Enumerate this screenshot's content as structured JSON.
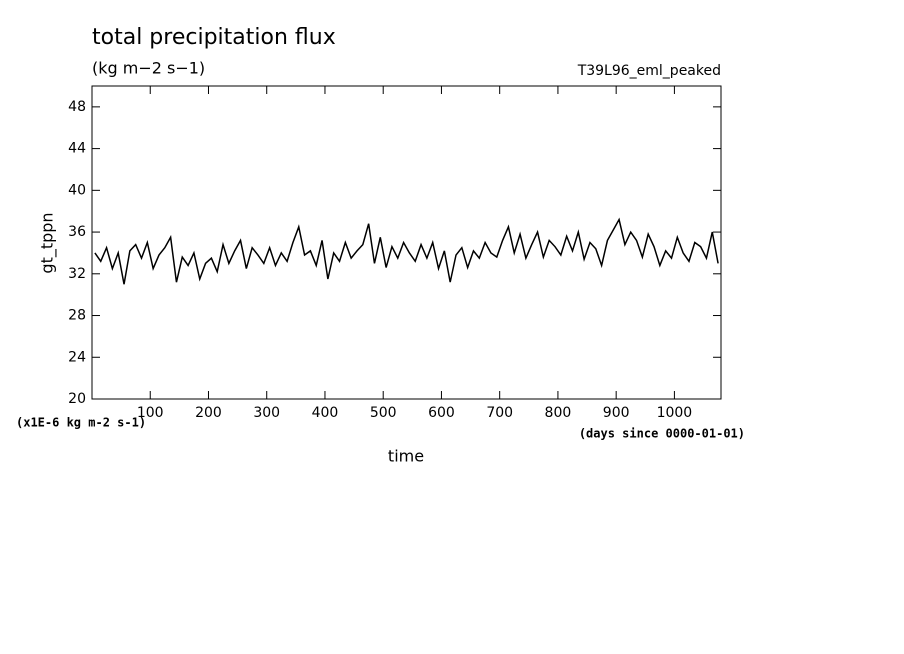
{
  "chart_data": {
    "type": "line",
    "title": "total precipitation flux",
    "subtitle": "(kg m−2 s−1)",
    "annotation": "T39L96_eml_peaked",
    "y_label": "gt_tppn",
    "x_label": "time",
    "y_unit_note": "(x1E-6 kg m-2 s-1)",
    "x_unit_note": "(days since 0000-01-01)",
    "x": [
      5,
      15,
      25,
      35,
      45,
      55,
      65,
      75,
      85,
      95,
      105,
      115,
      125,
      135,
      145,
      155,
      165,
      175,
      185,
      195,
      205,
      215,
      225,
      235,
      245,
      255,
      265,
      275,
      285,
      295,
      305,
      315,
      325,
      335,
      345,
      355,
      365,
      375,
      385,
      395,
      405,
      415,
      425,
      435,
      445,
      455,
      465,
      475,
      485,
      495,
      505,
      515,
      525,
      535,
      545,
      555,
      565,
      575,
      585,
      595,
      605,
      615,
      625,
      635,
      645,
      655,
      665,
      675,
      685,
      695,
      705,
      715,
      725,
      735,
      745,
      755,
      765,
      775,
      785,
      795,
      805,
      815,
      825,
      835,
      845,
      855,
      865,
      875,
      885,
      895,
      905,
      915,
      925,
      935,
      945,
      955,
      965,
      975,
      985,
      995,
      1005,
      1015,
      1025,
      1035,
      1045,
      1055,
      1065,
      1075
    ],
    "series": [
      {
        "name": "gt_tppn",
        "color": "#000000",
        "values": [
          34,
          33.2,
          34.5,
          32.5,
          34,
          31,
          34.2,
          34.8,
          33.5,
          35,
          32.5,
          33.8,
          34.5,
          35.5,
          31.2,
          33.6,
          32.8,
          34,
          31.5,
          33,
          33.5,
          32.2,
          34.8,
          33,
          34.2,
          35.2,
          32.5,
          34.5,
          33.8,
          33,
          34.5,
          32.8,
          34,
          33.2,
          35,
          36.5,
          33.8,
          34.2,
          32.8,
          35.2,
          31.5,
          34,
          33.2,
          35,
          33.5,
          34.2,
          34.8,
          36.8,
          33,
          35.5,
          32.6,
          34.6,
          33.5,
          35,
          34,
          33.2,
          34.8,
          33.5,
          35,
          32.5,
          34.2,
          31.2,
          33.8,
          34.5,
          32.6,
          34.2,
          33.5,
          35,
          34,
          33.6,
          35.2,
          36.5,
          34,
          35.8,
          33.5,
          34.8,
          36,
          33.6,
          35.2,
          34.6,
          33.8,
          35.6,
          34.2,
          36,
          33.4,
          35,
          34.4,
          32.8,
          35.2,
          36.2,
          37.2,
          34.8,
          36,
          35.2,
          33.6,
          35.8,
          34.6,
          32.8,
          34.2,
          33.5,
          35.5,
          34,
          33.2,
          35,
          34.6,
          33.5,
          36,
          33
        ]
      }
    ],
    "xlim": [
      0,
      1080
    ],
    "ylim": [
      20,
      50
    ],
    "xticks": [
      100,
      200,
      300,
      400,
      500,
      600,
      700,
      800,
      900,
      1000
    ],
    "yticks": [
      20,
      24,
      28,
      32,
      36,
      40,
      44,
      48
    ]
  }
}
